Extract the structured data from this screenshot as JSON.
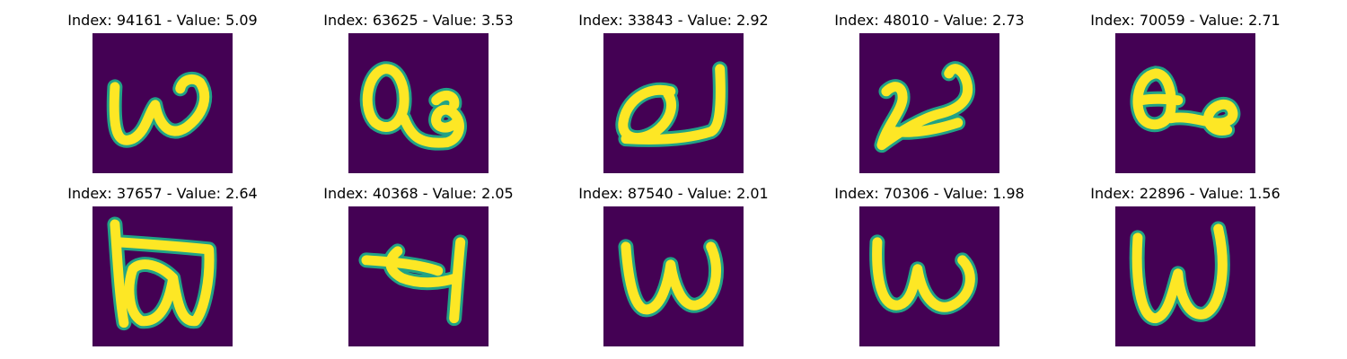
{
  "colors": {
    "background": "#440154",
    "stroke_core": "#fde725",
    "stroke_edge": "#21a386"
  },
  "panels": [
    {
      "title": "Index: 94161 - Value: 5.09"
    },
    {
      "title": "Index: 63625 - Value: 3.53"
    },
    {
      "title": "Index: 33843 - Value: 2.92"
    },
    {
      "title": "Index: 48010 - Value: 2.73"
    },
    {
      "title": "Index: 70059 - Value: 2.71"
    },
    {
      "title": "Index: 37657 - Value: 2.64"
    },
    {
      "title": "Index: 40368 - Value: 2.05"
    },
    {
      "title": "Index: 87540 - Value: 2.01"
    },
    {
      "title": "Index: 70306 - Value: 1.98"
    },
    {
      "title": "Index: 22896 - Value: 1.56"
    }
  ]
}
